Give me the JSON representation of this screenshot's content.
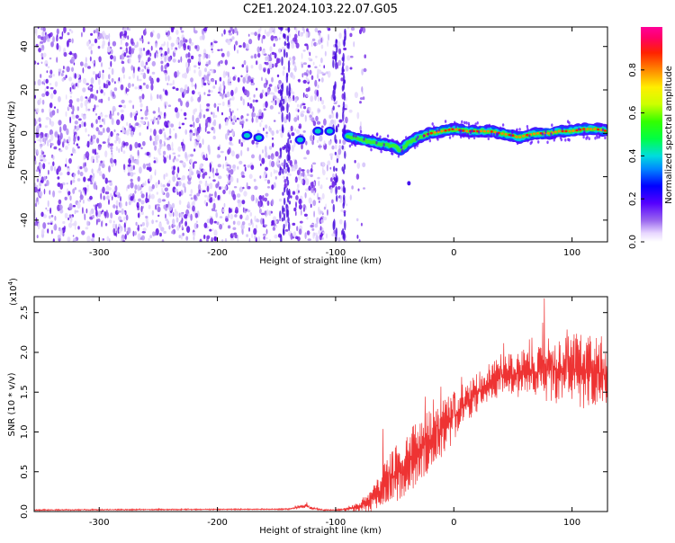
{
  "title": "C2E1.2024.103.22.07.G05",
  "chart_data": [
    {
      "type": "heatmap",
      "xlabel": "Height of straight line (km)",
      "ylabel": "Frequency (Hz)",
      "xlim": [
        -355,
        130
      ],
      "ylim": [
        -50,
        49
      ],
      "xticks": [
        -300,
        -200,
        -100,
        0,
        100
      ],
      "yticks": [
        -40,
        -20,
        0,
        20,
        40
      ],
      "grid": false,
      "noise_region": [
        -355,
        -85
      ],
      "signal_ridge": {
        "x": [
          -90,
          -80,
          -70,
          -60,
          -50,
          -45,
          -40,
          -30,
          -20,
          -10,
          0,
          10,
          20,
          30,
          40,
          50,
          55,
          60,
          70,
          80,
          90,
          100,
          110,
          120,
          130
        ],
        "frequency": [
          -1,
          -3,
          -4,
          -5,
          -6,
          -8,
          -5,
          -2,
          0,
          1,
          2,
          1,
          1,
          1,
          0,
          -1,
          -2,
          -1,
          0,
          0,
          1,
          1,
          2,
          2,
          1
        ]
      },
      "isolated_blobs": [
        {
          "x": -175,
          "frequency": -1
        },
        {
          "x": -165,
          "frequency": -2
        },
        {
          "x": -130,
          "frequency": -3
        },
        {
          "x": -115,
          "frequency": 1
        },
        {
          "x": -105,
          "frequency": 1
        }
      ],
      "colorbar": {
        "label": "Normalized spectral amplitude",
        "range": [
          0,
          1
        ],
        "ticks": [
          "0.0",
          "0.2",
          "0.4",
          "0.6",
          "0.8"
        ],
        "tick_values": [
          0,
          0.2,
          0.4,
          0.6,
          0.8
        ]
      }
    },
    {
      "type": "line",
      "xlabel": "Height of straight line (km)",
      "ylabel": "SNR (10 * v/v)",
      "scale_note": "(x10",
      "scale_exp": "4",
      "scale_close": ")",
      "xlim": [
        -355,
        130
      ],
      "ylim": [
        0,
        2.7
      ],
      "xticks": [
        -300,
        -200,
        -100,
        0,
        100
      ],
      "yticks": [
        0,
        0.5,
        1.0,
        1.5,
        2.0,
        2.5
      ],
      "ytick_labels": [
        "0.0",
        "0.5",
        "1.0",
        "1.5",
        "2.0",
        "2.5"
      ],
      "grid": false,
      "color": "#ee3333",
      "envelope": {
        "x": [
          -355,
          -140,
          -130,
          -125,
          -120,
          -110,
          -100,
          -90,
          -80,
          -70,
          -60,
          -50,
          -40,
          -30,
          -20,
          -10,
          0,
          10,
          20,
          30,
          40,
          50,
          60,
          70,
          80,
          90,
          100,
          110,
          120,
          130
        ],
        "mean": [
          0.02,
          0.03,
          0.06,
          0.07,
          0.04,
          0.02,
          0.02,
          0.03,
          0.06,
          0.15,
          0.3,
          0.45,
          0.6,
          0.75,
          0.9,
          1.05,
          1.2,
          1.35,
          1.5,
          1.62,
          1.7,
          1.72,
          1.74,
          1.75,
          1.78,
          1.78,
          1.76,
          1.77,
          1.75,
          1.7
        ],
        "spread": [
          0.01,
          0.01,
          0.03,
          0.03,
          0.02,
          0.01,
          0.01,
          0.03,
          0.08,
          0.2,
          0.35,
          0.45,
          0.5,
          0.5,
          0.5,
          0.45,
          0.4,
          0.35,
          0.3,
          0.3,
          0.32,
          0.35,
          0.38,
          0.4,
          0.5,
          0.55,
          0.6,
          0.6,
          0.6,
          0.6
        ]
      }
    }
  ]
}
